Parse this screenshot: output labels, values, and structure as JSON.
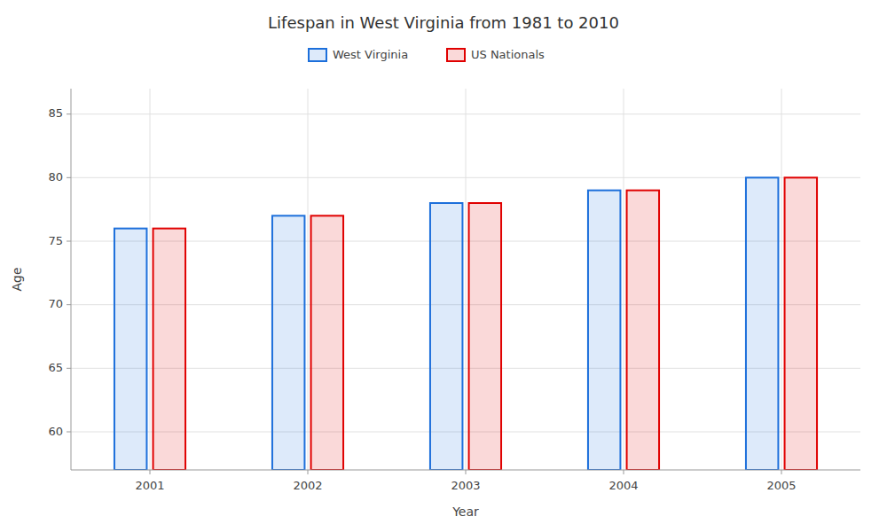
{
  "chart_data": {
    "type": "bar",
    "title": "Lifespan in West Virginia from 1981 to 2010",
    "x_label": "Year",
    "y_label": "Age",
    "categories": [
      "2001",
      "2002",
      "2003",
      "2004",
      "2005"
    ],
    "series": [
      {
        "name": "West Virginia",
        "color": "#1c6fdb",
        "values": [
          76,
          77,
          78,
          79,
          80
        ]
      },
      {
        "name": "US Nationals",
        "color": "#e00000",
        "values": [
          76,
          77,
          78,
          79,
          80
        ]
      }
    ],
    "ylim": [
      57,
      87
    ],
    "yticks": [
      60,
      65,
      70,
      75,
      80,
      85
    ],
    "grid": true,
    "legend": "top"
  }
}
